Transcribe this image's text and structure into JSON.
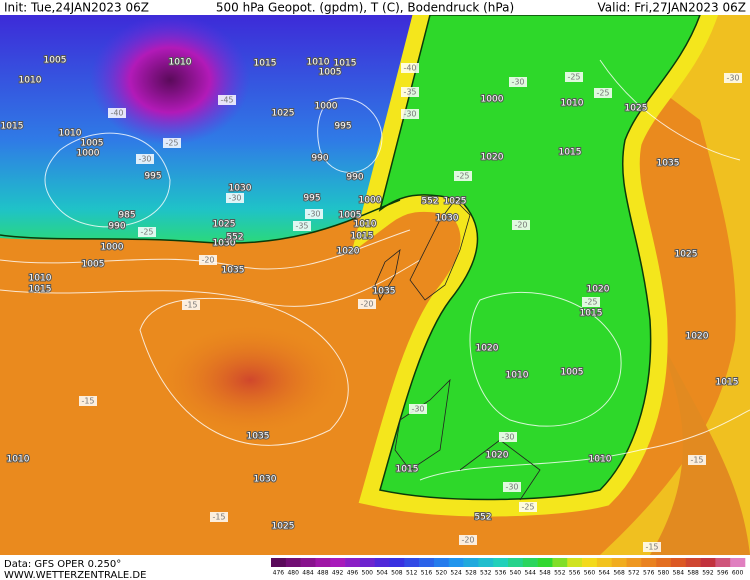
{
  "header": {
    "init": "Init: Tue,24JAN2023 06Z",
    "title": "500 hPa Geopot. (gpdm), T (C), Bodendruck (hPa)",
    "valid": "Valid: Fri,27JAN2023 06Z"
  },
  "isobar_labels": [
    1005,
    1010,
    1010,
    1015,
    1010,
    1015,
    1005,
    1025,
    1000,
    995,
    990,
    990,
    1000,
    1005,
    1010,
    1015,
    1020,
    1030,
    995,
    1010,
    1005,
    1000,
    995,
    985,
    990,
    1000,
    1005,
    1010,
    1015,
    1025,
    1030,
    1035,
    1035,
    1035,
    1030,
    1025,
    1010,
    1020,
    1015,
    1025,
    1030,
    1000,
    1010,
    1025,
    1035,
    1025,
    1020,
    1015,
    1020,
    1015,
    1020,
    1010,
    1005,
    1010,
    1015,
    1020,
    1015
  ],
  "temperature_labels": [
    -40,
    -35,
    -30,
    -25,
    -25,
    -30,
    -45,
    -40,
    -30,
    -25,
    -30,
    -25,
    -20,
    -30,
    -30,
    -35,
    -25,
    -20,
    -15,
    -20,
    -25,
    -30,
    -30,
    -30,
    -25,
    -20,
    -15,
    -15,
    -15,
    -15
  ],
  "contour_552_labels": [
    552,
    552,
    552
  ],
  "colorbar": {
    "labels": [
      476,
      480,
      484,
      488,
      492,
      496,
      500,
      504,
      508,
      512,
      516,
      520,
      524,
      528,
      532,
      536,
      540,
      544,
      548,
      552,
      556,
      560,
      564,
      568,
      572,
      576,
      580,
      584,
      588,
      592,
      596,
      600
    ]
  },
  "footer": {
    "data_source": "Data: GFS OPER 0.250°",
    "website": "WWW.WETTERZENTRALE.DE"
  }
}
